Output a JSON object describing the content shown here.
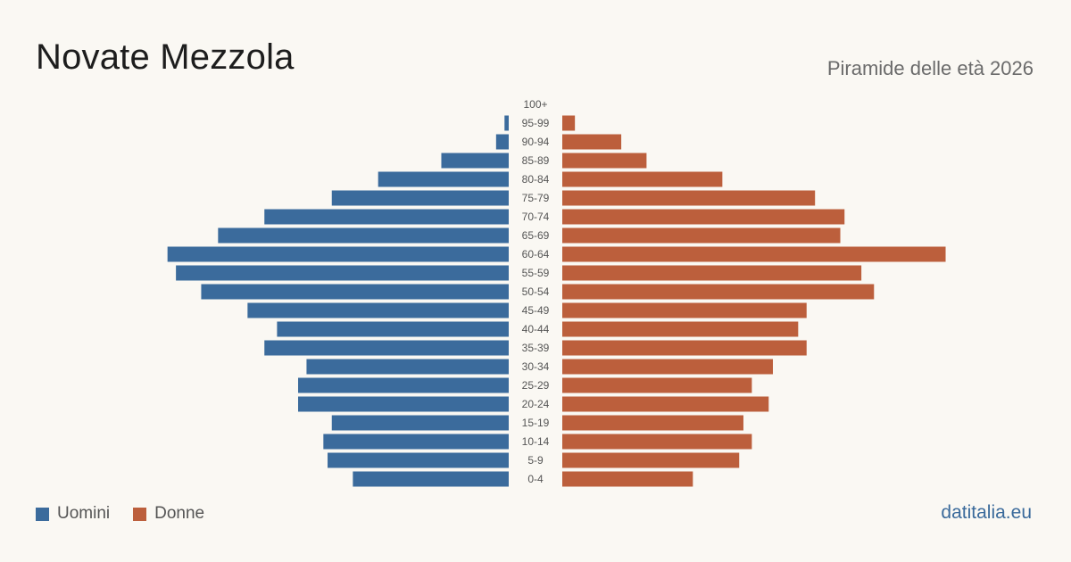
{
  "header": {
    "title": "Novate Mezzola",
    "subtitle": "Piramide delle età 2026"
  },
  "footer": {
    "site": "datitalia.eu"
  },
  "colors": {
    "men": "#3b6b9c",
    "women": "#bc5f3c"
  },
  "chart_data": {
    "type": "bar",
    "orientation": "horizontal",
    "categories": [
      "100+",
      "95-99",
      "90-94",
      "85-89",
      "80-84",
      "75-79",
      "70-74",
      "65-69",
      "60-64",
      "55-59",
      "50-54",
      "45-49",
      "40-44",
      "35-39",
      "30-34",
      "25-29",
      "20-24",
      "15-19",
      "10-14",
      "5-9",
      "0-4"
    ],
    "series": [
      {
        "name": "Uomini",
        "values": [
          0,
          1,
          3,
          16,
          31,
          42,
          58,
          69,
          81,
          79,
          73,
          62,
          55,
          58,
          48,
          50,
          50,
          42,
          44,
          43,
          37
        ]
      },
      {
        "name": "Donne",
        "values": [
          0,
          3,
          14,
          20,
          38,
          60,
          67,
          66,
          91,
          71,
          74,
          58,
          56,
          58,
          50,
          45,
          49,
          43,
          45,
          42,
          31
        ]
      }
    ],
    "legend": {
      "position": "bottom-left",
      "entries": [
        "Uomini",
        "Donne"
      ]
    },
    "grid": false
  }
}
